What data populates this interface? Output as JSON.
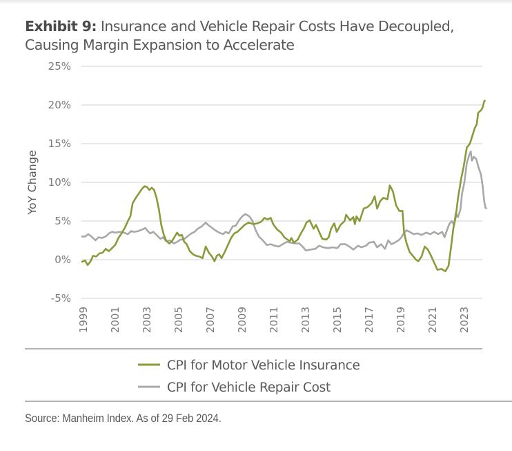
{
  "header": {
    "exhibit_label": "Exhibit 9:",
    "title_line1": "Insurance and Vehicle Repair Costs Have Decoupled,",
    "title_line2": "Causing Margin Expansion to Accelerate"
  },
  "footer": {
    "source": "Source: Manheim Index. As of 29 Feb 2024."
  },
  "chart_data": {
    "type": "line",
    "title": "Insurance and Vehicle Repair Costs Have Decoupled, Causing Margin Expansion to Accelerate",
    "xlabel": "",
    "ylabel": "YoY Change",
    "xlim": [
      1998.9,
      2024.2
    ],
    "ylim": [
      -5,
      25
    ],
    "yticks": [
      25,
      20,
      15,
      10,
      5,
      0,
      -5
    ],
    "ytick_labels": [
      "25%",
      "20%",
      "15%",
      "10%",
      "5%",
      "0%",
      "-5%"
    ],
    "xticks": [
      1999,
      2001,
      2003,
      2005,
      2007,
      2009,
      2011,
      2013,
      2015,
      2017,
      2019,
      2021,
      2023
    ],
    "xtick_labels": [
      "1999",
      "2001",
      "2003",
      "2005",
      "2007",
      "2009",
      "2011",
      "2013",
      "2015",
      "2017",
      "2019",
      "2021",
      "2023"
    ],
    "grid": "horizontal",
    "legend_position": "bottom",
    "series": [
      {
        "name": "CPI for Motor Vehicle Insurance",
        "color": "#8a9a3a",
        "points": [
          [
            1998.87,
            -0.3
          ],
          [
            1999.1,
            -0.1
          ],
          [
            1999.26,
            -0.7
          ],
          [
            1999.45,
            -0.2
          ],
          [
            1999.6,
            0.5
          ],
          [
            1999.8,
            0.4
          ],
          [
            2000.0,
            0.8
          ],
          [
            2000.2,
            0.9
          ],
          [
            2000.4,
            1.4
          ],
          [
            2000.6,
            1.1
          ],
          [
            2000.8,
            1.5
          ],
          [
            2001.0,
            1.9
          ],
          [
            2001.2,
            2.8
          ],
          [
            2001.4,
            3.4
          ],
          [
            2001.6,
            4.1
          ],
          [
            2001.8,
            5.0
          ],
          [
            2001.95,
            5.6
          ],
          [
            2002.1,
            7.3
          ],
          [
            2002.3,
            8.0
          ],
          [
            2002.5,
            8.6
          ],
          [
            2002.7,
            9.2
          ],
          [
            2002.85,
            9.5
          ],
          [
            2003.0,
            9.4
          ],
          [
            2003.15,
            9.0
          ],
          [
            2003.3,
            9.3
          ],
          [
            2003.45,
            9.0
          ],
          [
            2003.6,
            8.0
          ],
          [
            2003.75,
            6.5
          ],
          [
            2003.9,
            4.5
          ],
          [
            2004.05,
            3.3
          ],
          [
            2004.2,
            2.5
          ],
          [
            2004.4,
            2.1
          ],
          [
            2004.55,
            2.3
          ],
          [
            2004.75,
            3.0
          ],
          [
            2004.9,
            3.5
          ],
          [
            2005.05,
            3.1
          ],
          [
            2005.2,
            3.2
          ],
          [
            2005.35,
            2.3
          ],
          [
            2005.5,
            2.0
          ],
          [
            2005.7,
            1.1
          ],
          [
            2005.9,
            0.7
          ],
          [
            2006.1,
            0.5
          ],
          [
            2006.3,
            0.4
          ],
          [
            2006.5,
            0.2
          ],
          [
            2006.7,
            1.7
          ],
          [
            2006.9,
            0.9
          ],
          [
            2007.1,
            0.4
          ],
          [
            2007.25,
            -0.2
          ],
          [
            2007.4,
            0.5
          ],
          [
            2007.55,
            0.7
          ],
          [
            2007.7,
            0.2
          ],
          [
            2007.9,
            1.0
          ],
          [
            2008.1,
            1.9
          ],
          [
            2008.3,
            2.8
          ],
          [
            2008.5,
            3.4
          ],
          [
            2008.7,
            3.6
          ],
          [
            2008.9,
            4.0
          ],
          [
            2009.15,
            4.5
          ],
          [
            2009.4,
            4.8
          ],
          [
            2009.7,
            4.6
          ],
          [
            2009.95,
            4.7
          ],
          [
            2010.2,
            4.9
          ],
          [
            2010.4,
            5.4
          ],
          [
            2010.6,
            5.2
          ],
          [
            2010.8,
            5.4
          ],
          [
            2010.95,
            4.6
          ],
          [
            2011.2,
            3.9
          ],
          [
            2011.45,
            3.5
          ],
          [
            2011.65,
            2.9
          ],
          [
            2011.85,
            2.6
          ],
          [
            2012.0,
            2.4
          ],
          [
            2012.1,
            2.8
          ],
          [
            2012.25,
            2.2
          ],
          [
            2012.5,
            2.6
          ],
          [
            2012.7,
            3.4
          ],
          [
            2012.9,
            4.1
          ],
          [
            2013.05,
            4.8
          ],
          [
            2013.25,
            5.1
          ],
          [
            2013.5,
            4.0
          ],
          [
            2013.65,
            4.5
          ],
          [
            2013.85,
            3.6
          ],
          [
            2014.05,
            2.7
          ],
          [
            2014.3,
            2.6
          ],
          [
            2014.45,
            2.9
          ],
          [
            2014.6,
            4.0
          ],
          [
            2014.8,
            4.7
          ],
          [
            2014.95,
            3.6
          ],
          [
            2015.2,
            4.5
          ],
          [
            2015.45,
            5.0
          ],
          [
            2015.55,
            5.8
          ],
          [
            2015.8,
            5.1
          ],
          [
            2016.0,
            5.5
          ],
          [
            2016.1,
            4.6
          ],
          [
            2016.2,
            5.6
          ],
          [
            2016.4,
            5.0
          ],
          [
            2016.65,
            6.6
          ],
          [
            2016.9,
            6.8
          ],
          [
            2017.15,
            7.3
          ],
          [
            2017.35,
            8.2
          ],
          [
            2017.5,
            6.6
          ],
          [
            2017.7,
            7.6
          ],
          [
            2017.9,
            8.0
          ],
          [
            2018.15,
            7.8
          ],
          [
            2018.3,
            9.6
          ],
          [
            2018.5,
            8.8
          ],
          [
            2018.7,
            7.0
          ],
          [
            2018.9,
            6.3
          ],
          [
            2019.1,
            6.3
          ],
          [
            2019.2,
            3.5
          ],
          [
            2019.35,
            2.2
          ],
          [
            2019.55,
            1.0
          ],
          [
            2019.75,
            0.5
          ],
          [
            2019.95,
            0.0
          ],
          [
            2020.1,
            -0.2
          ],
          [
            2020.3,
            0.4
          ],
          [
            2020.5,
            1.7
          ],
          [
            2020.7,
            1.3
          ],
          [
            2020.9,
            0.5
          ],
          [
            2021.1,
            -0.4
          ],
          [
            2021.3,
            -1.3
          ],
          [
            2021.55,
            -1.2
          ],
          [
            2021.8,
            -1.5
          ],
          [
            2022.0,
            -0.8
          ],
          [
            2022.15,
            1.5
          ],
          [
            2022.3,
            4.0
          ],
          [
            2022.45,
            5.5
          ],
          [
            2022.6,
            8.0
          ],
          [
            2022.8,
            10.5
          ],
          [
            2022.95,
            12.0
          ],
          [
            2023.15,
            14.5
          ],
          [
            2023.35,
            15.0
          ],
          [
            2023.5,
            16.0
          ],
          [
            2023.65,
            17.0
          ],
          [
            2023.78,
            17.5
          ],
          [
            2023.87,
            19.0
          ],
          [
            2024.05,
            19.3
          ],
          [
            2024.15,
            19.7
          ],
          [
            2024.25,
            20.5
          ],
          [
            2024.33,
            20.6
          ]
        ]
      },
      {
        "name": "CPI for Vehicle Repair Cost",
        "color": "#a8a8a8",
        "points": [
          [
            1998.87,
            3.0
          ],
          [
            1999.1,
            3.0
          ],
          [
            1999.3,
            3.3
          ],
          [
            1999.5,
            3.0
          ],
          [
            1999.75,
            2.5
          ],
          [
            1999.95,
            2.9
          ],
          [
            2000.15,
            2.8
          ],
          [
            2000.4,
            3.0
          ],
          [
            2000.6,
            3.4
          ],
          [
            2000.8,
            3.6
          ],
          [
            2001.0,
            3.5
          ],
          [
            2001.3,
            3.6
          ],
          [
            2001.55,
            3.5
          ],
          [
            2001.8,
            3.3
          ],
          [
            2002.0,
            3.7
          ],
          [
            2002.2,
            3.6
          ],
          [
            2002.45,
            3.7
          ],
          [
            2002.7,
            3.9
          ],
          [
            2002.9,
            4.1
          ],
          [
            2003.05,
            3.7
          ],
          [
            2003.2,
            3.4
          ],
          [
            2003.4,
            3.6
          ],
          [
            2003.6,
            3.2
          ],
          [
            2003.85,
            2.7
          ],
          [
            2004.0,
            2.9
          ],
          [
            2004.2,
            2.4
          ],
          [
            2004.45,
            2.5
          ],
          [
            2004.7,
            2.1
          ],
          [
            2004.9,
            2.3
          ],
          [
            2005.1,
            2.6
          ],
          [
            2005.3,
            2.6
          ],
          [
            2005.55,
            3.0
          ],
          [
            2005.8,
            3.4
          ],
          [
            2006.0,
            3.6
          ],
          [
            2006.2,
            4.0
          ],
          [
            2006.45,
            4.3
          ],
          [
            2006.7,
            4.8
          ],
          [
            2006.85,
            4.5
          ],
          [
            2007.05,
            4.2
          ],
          [
            2007.3,
            3.8
          ],
          [
            2007.55,
            3.5
          ],
          [
            2007.8,
            3.3
          ],
          [
            2007.95,
            3.6
          ],
          [
            2008.15,
            3.4
          ],
          [
            2008.4,
            4.3
          ],
          [
            2008.6,
            4.4
          ],
          [
            2008.8,
            5.1
          ],
          [
            2009.0,
            5.6
          ],
          [
            2009.2,
            5.9
          ],
          [
            2009.45,
            5.6
          ],
          [
            2009.65,
            5.0
          ],
          [
            2009.85,
            3.8
          ],
          [
            2010.05,
            3.0
          ],
          [
            2010.3,
            2.5
          ],
          [
            2010.55,
            1.9
          ],
          [
            2010.8,
            2.0
          ],
          [
            2011.05,
            1.8
          ],
          [
            2011.3,
            1.7
          ],
          [
            2011.55,
            2.0
          ],
          [
            2011.8,
            2.3
          ],
          [
            2012.05,
            2.2
          ],
          [
            2012.35,
            2.1
          ],
          [
            2012.6,
            2.1
          ],
          [
            2012.85,
            1.6
          ],
          [
            2013.0,
            1.2
          ],
          [
            2013.3,
            1.3
          ],
          [
            2013.6,
            1.4
          ],
          [
            2013.85,
            1.8
          ],
          [
            2014.1,
            1.6
          ],
          [
            2014.4,
            1.5
          ],
          [
            2014.7,
            1.6
          ],
          [
            2015.0,
            1.5
          ],
          [
            2015.2,
            2.0
          ],
          [
            2015.5,
            2.0
          ],
          [
            2015.75,
            1.7
          ],
          [
            2016.0,
            1.3
          ],
          [
            2016.3,
            1.8
          ],
          [
            2016.5,
            1.6
          ],
          [
            2016.8,
            1.8
          ],
          [
            2017.0,
            2.2
          ],
          [
            2017.3,
            2.3
          ],
          [
            2017.5,
            1.6
          ],
          [
            2017.75,
            2.0
          ],
          [
            2018.0,
            1.4
          ],
          [
            2018.2,
            2.5
          ],
          [
            2018.4,
            2.0
          ],
          [
            2018.6,
            2.2
          ],
          [
            2018.85,
            2.5
          ],
          [
            2019.0,
            2.8
          ],
          [
            2019.15,
            3.3
          ],
          [
            2019.35,
            3.8
          ],
          [
            2019.55,
            3.6
          ],
          [
            2019.8,
            3.3
          ],
          [
            2020.05,
            3.4
          ],
          [
            2020.3,
            3.2
          ],
          [
            2020.6,
            3.5
          ],
          [
            2020.85,
            3.3
          ],
          [
            2021.1,
            3.6
          ],
          [
            2021.35,
            3.3
          ],
          [
            2021.6,
            3.6
          ],
          [
            2021.75,
            2.9
          ],
          [
            2021.9,
            3.8
          ],
          [
            2022.05,
            4.6
          ],
          [
            2022.2,
            5.0
          ],
          [
            2022.35,
            4.5
          ],
          [
            2022.45,
            6.0
          ],
          [
            2022.6,
            5.5
          ],
          [
            2022.75,
            6.5
          ],
          [
            2022.85,
            8.5
          ],
          [
            2023.0,
            10.0
          ],
          [
            2023.15,
            12.5
          ],
          [
            2023.3,
            13.5
          ],
          [
            2023.4,
            14.0
          ],
          [
            2023.48,
            12.8
          ],
          [
            2023.6,
            13.3
          ],
          [
            2023.75,
            13.0
          ],
          [
            2023.88,
            12.0
          ],
          [
            2024.05,
            11.0
          ],
          [
            2024.15,
            9.5
          ],
          [
            2024.25,
            7.5
          ],
          [
            2024.33,
            6.7
          ],
          [
            2024.42,
            6.6
          ]
        ]
      }
    ]
  }
}
